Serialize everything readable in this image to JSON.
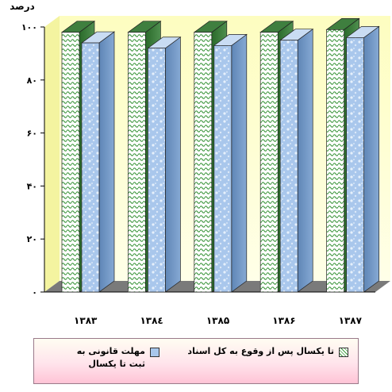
{
  "chart_data": {
    "type": "bar",
    "ylabel": "درصد",
    "ylim": [
      0,
      100
    ],
    "yticks": [
      "۰",
      "۲۰",
      "۴۰",
      "۶۰",
      "۸۰",
      "۱۰۰"
    ],
    "ytick_values": [
      0,
      20,
      40,
      60,
      80,
      100
    ],
    "categories": [
      "۱۳۸۳",
      "۱۳۸٤",
      "۱۳۸۵",
      "۱۳۸۶",
      "۱۳۸۷"
    ],
    "series": [
      {
        "name": "تا یکسال پس از وقوع به کل اسناد",
        "values": [
          98,
          98,
          98,
          98,
          99
        ],
        "color": "#3a9a3a"
      },
      {
        "name": "مهلت قانونی به ثبت تا یکسال",
        "values": [
          94,
          92,
          93,
          95,
          96
        ],
        "color": "#a9c7ec"
      }
    ],
    "grid": false,
    "legend_position": "bottom",
    "plot_background": "#fefec0",
    "floor_color": "#7a7a7a"
  },
  "legend": {
    "item1": "تا یکسال پس از وقوع به کل اسناد",
    "item2_line1": "مهلت قانونی به",
    "item2_line2": "ثبت تا یکسال"
  }
}
